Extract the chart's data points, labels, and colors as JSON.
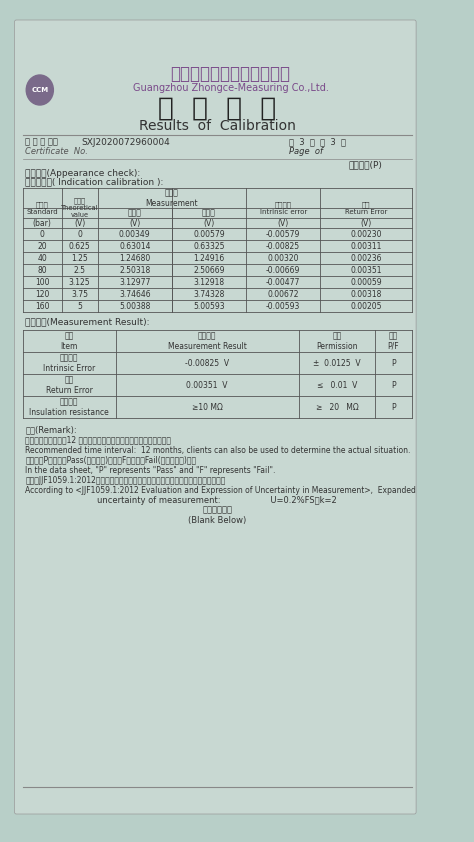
{
  "bg_color": "#b8cfc8",
  "paper_color": "#c8d8d2",
  "company_cn": "广州中测检测技术有限公司",
  "company_en": "Guangzhou Zhongce-Measuring Co.,Ltd.",
  "title_cn": "校  准  结  果",
  "title_en": "Results  of  Calibration",
  "page_info": "第  3  页  共  3  页",
  "page_en": "Page  of",
  "cert_label_cn": "证 书 编 号：",
  "cert_label_en": "Certificate  No.",
  "cert_no": "SXJ2020072960004",
  "appearance_check": "外观检查(Appearance check):",
  "appearance_result": "符合要求(P)",
  "indication_title": "示値的校准( Indication calibration ):",
  "table1_data": [
    [
      "0",
      "0",
      "0.00349",
      "0.00579",
      "-0.00579",
      "0.00230"
    ],
    [
      "20",
      "0.625",
      "0.63014",
      "0.63325",
      "-0.00825",
      "0.00311"
    ],
    [
      "40",
      "1.25",
      "1.24680",
      "1.24916",
      "0.00320",
      "0.00236"
    ],
    [
      "80",
      "2.5",
      "2.50318",
      "2.50669",
      "-0.00669",
      "0.00351"
    ],
    [
      "100",
      "3.125",
      "3.12977",
      "3.12918",
      "-0.00477",
      "0.00059"
    ],
    [
      "120",
      "3.75",
      "3.74646",
      "3.74328",
      "0.00672",
      "0.00318"
    ],
    [
      "160",
      "5",
      "5.00388",
      "5.00593",
      "-0.00593",
      "0.00205"
    ]
  ],
  "result_title": "实测结果(Measurement Result):",
  "result_data": [
    [
      "基本误差\nIntrinsic Error",
      "-0.00825  V",
      "±  0.0125  V",
      "P"
    ],
    [
      "回差\nReturn Error",
      "0.00351  V",
      "≤   0.01  V",
      "P"
    ],
    [
      "绵缘电阵\nInsulation resistance",
      "≥10 MΩ",
      "≥   20   MΩ",
      "P"
    ]
  ],
  "remark_title": "备注(Remark):",
  "remark_lines": [
    "建议复校时间间隔：12 个月，送校单位可按实际使用情况自主决定。",
    "Recommended time interval:  12 months, clients can also be used to determine the actual situation.",
    "证书中「P」代表「Pass(符合要求)」，「F」代表「Fail(不符合要求)」。",
    "In the data sheet, \"P\" represents \"Pass\" and \"F\" represents \"Fail\".",
    "根据《JJF1059.1:2012测量不确定度评定与表示》，本次测量结果的扩展不确定度为：",
    "According to <JJF1059.1:2012 Evaluation and Expression of Uncertainty in Measurement>,  Expanded",
    "uncertainty of measurement:                   U=0.2%FS，k=2",
    "（以下空白）",
    "(Blank Below)"
  ]
}
